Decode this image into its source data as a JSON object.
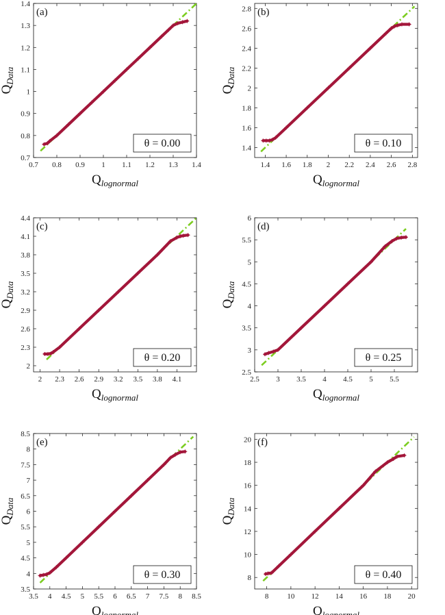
{
  "colors": {
    "data": "#a3173a",
    "reference": "#7ccd20",
    "axis": "#111111"
  },
  "chart_data": [
    {
      "type": "scatter",
      "panel": "(a)",
      "annotation": "θ = 0.00",
      "ylabel": {
        "main": "Q",
        "sub": "Data"
      },
      "xlabel": {
        "main": "Q",
        "sub": "lognormal"
      },
      "xlim": [
        0.7,
        1.4
      ],
      "ylim": [
        0.7,
        1.4
      ],
      "xticks": [
        0.7,
        0.8,
        0.9,
        1,
        1.1,
        1.2,
        1.3,
        1.4
      ],
      "xtick_labels": [
        "0.7",
        "0.8",
        "0.9",
        "1",
        "1.1",
        "1.2",
        "1.3",
        "1.4"
      ],
      "yticks": [
        0.7,
        0.8,
        0.9,
        1,
        1.1,
        1.2,
        1.3,
        1.4
      ],
      "ytick_labels": [
        "0.7",
        "0.8",
        "0.9",
        "1",
        "1.1",
        "1.2",
        "1.3",
        "1.4"
      ],
      "reference_line": {
        "x": [
          0.73,
          1.4
        ],
        "y": [
          0.73,
          1.4
        ]
      },
      "series": [
        {
          "x": [
            0.745,
            0.76,
            0.77,
            0.8,
            0.85,
            0.9,
            0.95,
            1.0,
            1.05,
            1.1,
            1.15,
            1.2,
            1.25,
            1.28,
            1.3,
            1.32,
            1.34,
            1.36
          ],
          "y": [
            0.76,
            0.765,
            0.775,
            0.8,
            0.85,
            0.9,
            0.95,
            1.0,
            1.05,
            1.1,
            1.15,
            1.2,
            1.25,
            1.28,
            1.3,
            1.31,
            1.315,
            1.32
          ]
        }
      ]
    },
    {
      "type": "scatter",
      "panel": "(b)",
      "annotation": "θ = 0.10",
      "ylabel": {
        "main": "Q",
        "sub": "Data"
      },
      "xlabel": {
        "main": "Q",
        "sub": "lognormal"
      },
      "xlim": [
        1.3,
        2.85
      ],
      "ylim": [
        1.3,
        2.85
      ],
      "xticks": [
        1.4,
        1.6,
        1.8,
        2,
        2.2,
        2.4,
        2.6,
        2.8
      ],
      "xtick_labels": [
        "1.4",
        "1.6",
        "1.8",
        "2",
        "2.2",
        "2.4",
        "2.6",
        "2.8"
      ],
      "yticks": [
        1.4,
        1.6,
        1.8,
        2,
        2.2,
        2.4,
        2.6,
        2.8
      ],
      "ytick_labels": [
        "1.4",
        "1.6",
        "1.8",
        "2",
        "2.2",
        "2.4",
        "2.6",
        "2.8"
      ],
      "reference_line": {
        "x": [
          1.36,
          2.82
        ],
        "y": [
          1.36,
          2.82
        ]
      },
      "series": [
        {
          "x": [
            1.38,
            1.41,
            1.44,
            1.47,
            1.5,
            1.6,
            1.8,
            2.0,
            2.2,
            2.4,
            2.55,
            2.6,
            2.63,
            2.66,
            2.7,
            2.77
          ],
          "y": [
            1.47,
            1.47,
            1.47,
            1.48,
            1.5,
            1.6,
            1.8,
            2.0,
            2.2,
            2.4,
            2.55,
            2.6,
            2.62,
            2.63,
            2.64,
            2.64
          ]
        }
      ]
    },
    {
      "type": "scatter",
      "panel": "(c)",
      "annotation": "θ = 0.20",
      "ylabel": {
        "main": "Q",
        "sub": "Data"
      },
      "xlabel": {
        "main": "Q",
        "sub": "lognormal"
      },
      "xlim": [
        1.9,
        4.4
      ],
      "ylim": [
        1.9,
        4.4
      ],
      "xticks": [
        2,
        2.3,
        2.6,
        2.9,
        3.2,
        3.5,
        3.8,
        4.1
      ],
      "xtick_labels": [
        "2",
        "2.3",
        "2.6",
        "2.9",
        "3.2",
        "3.5",
        "3.8",
        "4.1"
      ],
      "yticks": [
        2,
        2.3,
        2.6,
        2.9,
        3.2,
        3.5,
        3.8,
        4.1,
        4.4
      ],
      "ytick_labels": [
        "2",
        "2.3",
        "2.6",
        "2.9",
        "3.2",
        "3.5",
        "3.8",
        "4.1",
        "4.4"
      ],
      "reference_line": {
        "x": [
          2.1,
          4.4
        ],
        "y": [
          2.1,
          4.4
        ]
      },
      "series": [
        {
          "x": [
            2.07,
            2.12,
            2.17,
            2.2,
            2.3,
            2.6,
            2.9,
            3.2,
            3.5,
            3.8,
            4.0,
            4.1,
            4.15,
            4.2,
            4.27
          ],
          "y": [
            2.19,
            2.19,
            2.2,
            2.22,
            2.3,
            2.6,
            2.9,
            3.2,
            3.5,
            3.8,
            4.02,
            4.08,
            4.1,
            4.11,
            4.12
          ]
        }
      ]
    },
    {
      "type": "scatter",
      "panel": "(d)",
      "annotation": "θ = 0.25",
      "ylabel": {
        "main": "Q",
        "sub": "Data"
      },
      "xlabel": {
        "main": "Q",
        "sub": "lognormal"
      },
      "xlim": [
        2.5,
        6.0
      ],
      "ylim": [
        2.5,
        6.0
      ],
      "xticks": [
        2.5,
        3,
        3.5,
        4,
        4.5,
        5,
        5.5
      ],
      "xtick_labels": [
        "2.5",
        "3",
        "3.5",
        "4",
        "4.5",
        "5",
        "5.5"
      ],
      "yticks": [
        2.5,
        3,
        3.5,
        4,
        4.5,
        5,
        5.5,
        6
      ],
      "ytick_labels": [
        "2.5",
        "3",
        "3.5",
        "4",
        "4.5",
        "5",
        "5.5",
        "6"
      ],
      "reference_line": {
        "x": [
          2.65,
          5.75
        ],
        "y": [
          2.65,
          5.75
        ]
      },
      "series": [
        {
          "x": [
            2.72,
            2.8,
            2.9,
            3.0,
            3.5,
            4.0,
            4.5,
            5.0,
            5.3,
            5.45,
            5.55,
            5.65,
            5.75
          ],
          "y": [
            2.9,
            2.93,
            2.96,
            3.0,
            3.5,
            4.0,
            4.5,
            5.0,
            5.35,
            5.47,
            5.53,
            5.55,
            5.56
          ]
        }
      ]
    },
    {
      "type": "scatter",
      "panel": "(e)",
      "annotation": "θ = 0.30",
      "ylabel": {
        "main": "Q",
        "sub": "Data"
      },
      "xlabel": {
        "main": "Q",
        "sub": "lognormal"
      },
      "xlim": [
        3.5,
        8.5
      ],
      "ylim": [
        3.5,
        8.5
      ],
      "xticks": [
        3.5,
        4,
        4.5,
        5,
        5.5,
        6,
        6.5,
        7,
        7.5,
        8,
        8.5
      ],
      "xtick_labels": [
        "3.5",
        "4",
        "4.5",
        "5",
        "5.5",
        "6",
        "6.5",
        "7",
        "7.5",
        "8",
        "8.5"
      ],
      "yticks": [
        3.5,
        4,
        4.5,
        5,
        5.5,
        6,
        6.5,
        7,
        7.5,
        8,
        8.5
      ],
      "ytick_labels": [
        "3.5",
        "4",
        "4.5",
        "5",
        "5.5",
        "6",
        "6.5",
        "7",
        "7.5",
        "8",
        "8.5"
      ],
      "reference_line": {
        "x": [
          3.7,
          8.4
        ],
        "y": [
          3.7,
          8.4
        ]
      },
      "series": [
        {
          "x": [
            3.7,
            3.8,
            3.9,
            4.0,
            4.2,
            4.5,
            5.0,
            5.5,
            6.0,
            6.5,
            7.0,
            7.5,
            7.7,
            7.85,
            8.0,
            8.15
          ],
          "y": [
            3.93,
            3.95,
            3.97,
            4.02,
            4.2,
            4.5,
            5.0,
            5.5,
            6.0,
            6.5,
            7.0,
            7.5,
            7.72,
            7.82,
            7.9,
            7.92
          ]
        }
      ]
    },
    {
      "type": "scatter",
      "panel": "(f)",
      "annotation": "θ = 0.40",
      "ylabel": {
        "main": "Q",
        "sub": "Data"
      },
      "xlabel": {
        "main": "Q",
        "sub": "lognormal"
      },
      "xlim": [
        7,
        20.5
      ],
      "ylim": [
        7,
        20.5
      ],
      "xticks": [
        8,
        10,
        12,
        14,
        16,
        18,
        20
      ],
      "xtick_labels": [
        "8",
        "10",
        "12",
        "14",
        "16",
        "18",
        "20"
      ],
      "yticks": [
        8,
        10,
        12,
        14,
        16,
        18,
        20
      ],
      "ytick_labels": [
        "8",
        "10",
        "12",
        "14",
        "16",
        "18",
        "20"
      ],
      "reference_line": {
        "x": [
          7.7,
          20.2
        ],
        "y": [
          7.7,
          20.2
        ]
      },
      "series": [
        {
          "x": [
            7.9,
            8.1,
            8.4,
            9.0,
            10,
            12,
            14,
            16,
            17,
            18,
            18.5,
            18.8,
            19.4
          ],
          "y": [
            8.3,
            8.35,
            8.4,
            9.0,
            10,
            12,
            14,
            16,
            17.2,
            18.0,
            18.3,
            18.5,
            18.6
          ]
        }
      ]
    }
  ]
}
